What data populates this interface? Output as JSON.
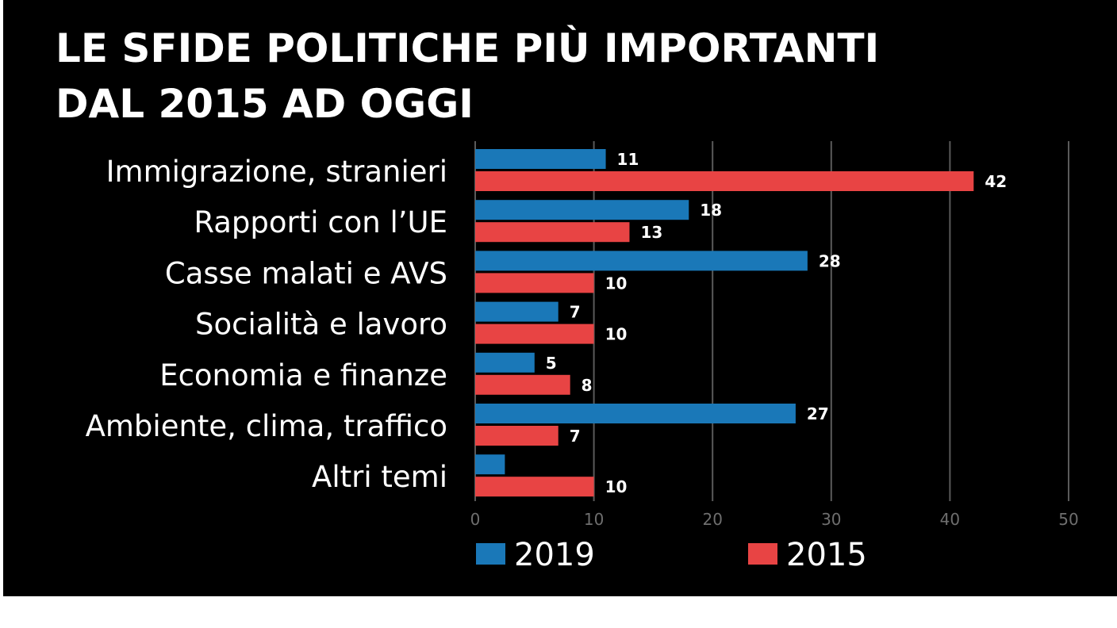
{
  "chart_data": {
    "type": "bar",
    "orientation": "horizontal",
    "title_lines": [
      "LE SFIDE POLITICHE PIÙ IMPORTANTI",
      "DAL 2015 AD OGGI"
    ],
    "categories": [
      "Immigrazione, stranieri",
      "Rapporti con l’UE",
      "Casse malati e AVS",
      "Socialità e lavoro",
      "Economia e finanze",
      "Ambiente, clima, traffico",
      "Altri temi"
    ],
    "series": [
      {
        "name": "2019",
        "color": "#1a78b8",
        "values": [
          11,
          18,
          28,
          7,
          5,
          27,
          2.5
        ],
        "labels": [
          "11",
          "18",
          "28",
          "7",
          "5",
          "27",
          ""
        ]
      },
      {
        "name": "2015",
        "color": "#e84444",
        "values": [
          42,
          13,
          10,
          10,
          8,
          7,
          10
        ],
        "labels": [
          "42",
          "13",
          "10",
          "10",
          "8",
          "7",
          "10"
        ]
      }
    ],
    "xlim": [
      0,
      50
    ],
    "xticks": [
      0,
      10,
      20,
      30,
      40,
      50
    ],
    "grid": true,
    "legend_position": "bottom"
  }
}
